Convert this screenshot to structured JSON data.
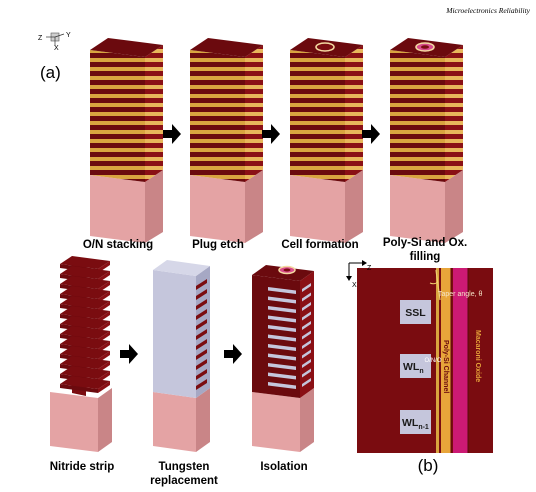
{
  "header": {
    "journal": "Microelectronics Reliability"
  },
  "panel_a": {
    "label": "(a)",
    "axis": {
      "z": "Z",
      "y": "Y",
      "x": "X"
    },
    "steps": [
      {
        "id": "on-stacking",
        "label": "O/N stacking"
      },
      {
        "id": "plug-etch",
        "label": "Plug etch"
      },
      {
        "id": "cell-formation",
        "label": "Cell formation"
      },
      {
        "id": "poly-fill",
        "label_line1": "Poly-Si and Ox.",
        "label_line2": "filling"
      },
      {
        "id": "nitride-strip",
        "label": "Nitride strip"
      },
      {
        "id": "tungsten",
        "label_line1": "Tungsten",
        "label_line2": "replacement"
      },
      {
        "id": "isolation",
        "label": "Isolation"
      }
    ]
  },
  "panel_b": {
    "label": "(b)",
    "axis": {
      "z": "Z",
      "x": "X"
    },
    "taper": "Taper angle, θ",
    "ono": "O/N/O",
    "channel": "Poly-Si Channel",
    "oxide": "Macaroni Oxide",
    "ssl": "SSL",
    "wl_n": {
      "main": "WL",
      "sub": "n"
    },
    "wl_n1": {
      "main": "WL",
      "sub": "n-1"
    }
  },
  "colors": {
    "oxide": "#7a0c10",
    "nitride": "#d9a43f",
    "substrate": "#e4a3a4",
    "tungsten": "#c5c6dc",
    "channel": "#e8a53a",
    "macaroni": "#cc1a74"
  }
}
